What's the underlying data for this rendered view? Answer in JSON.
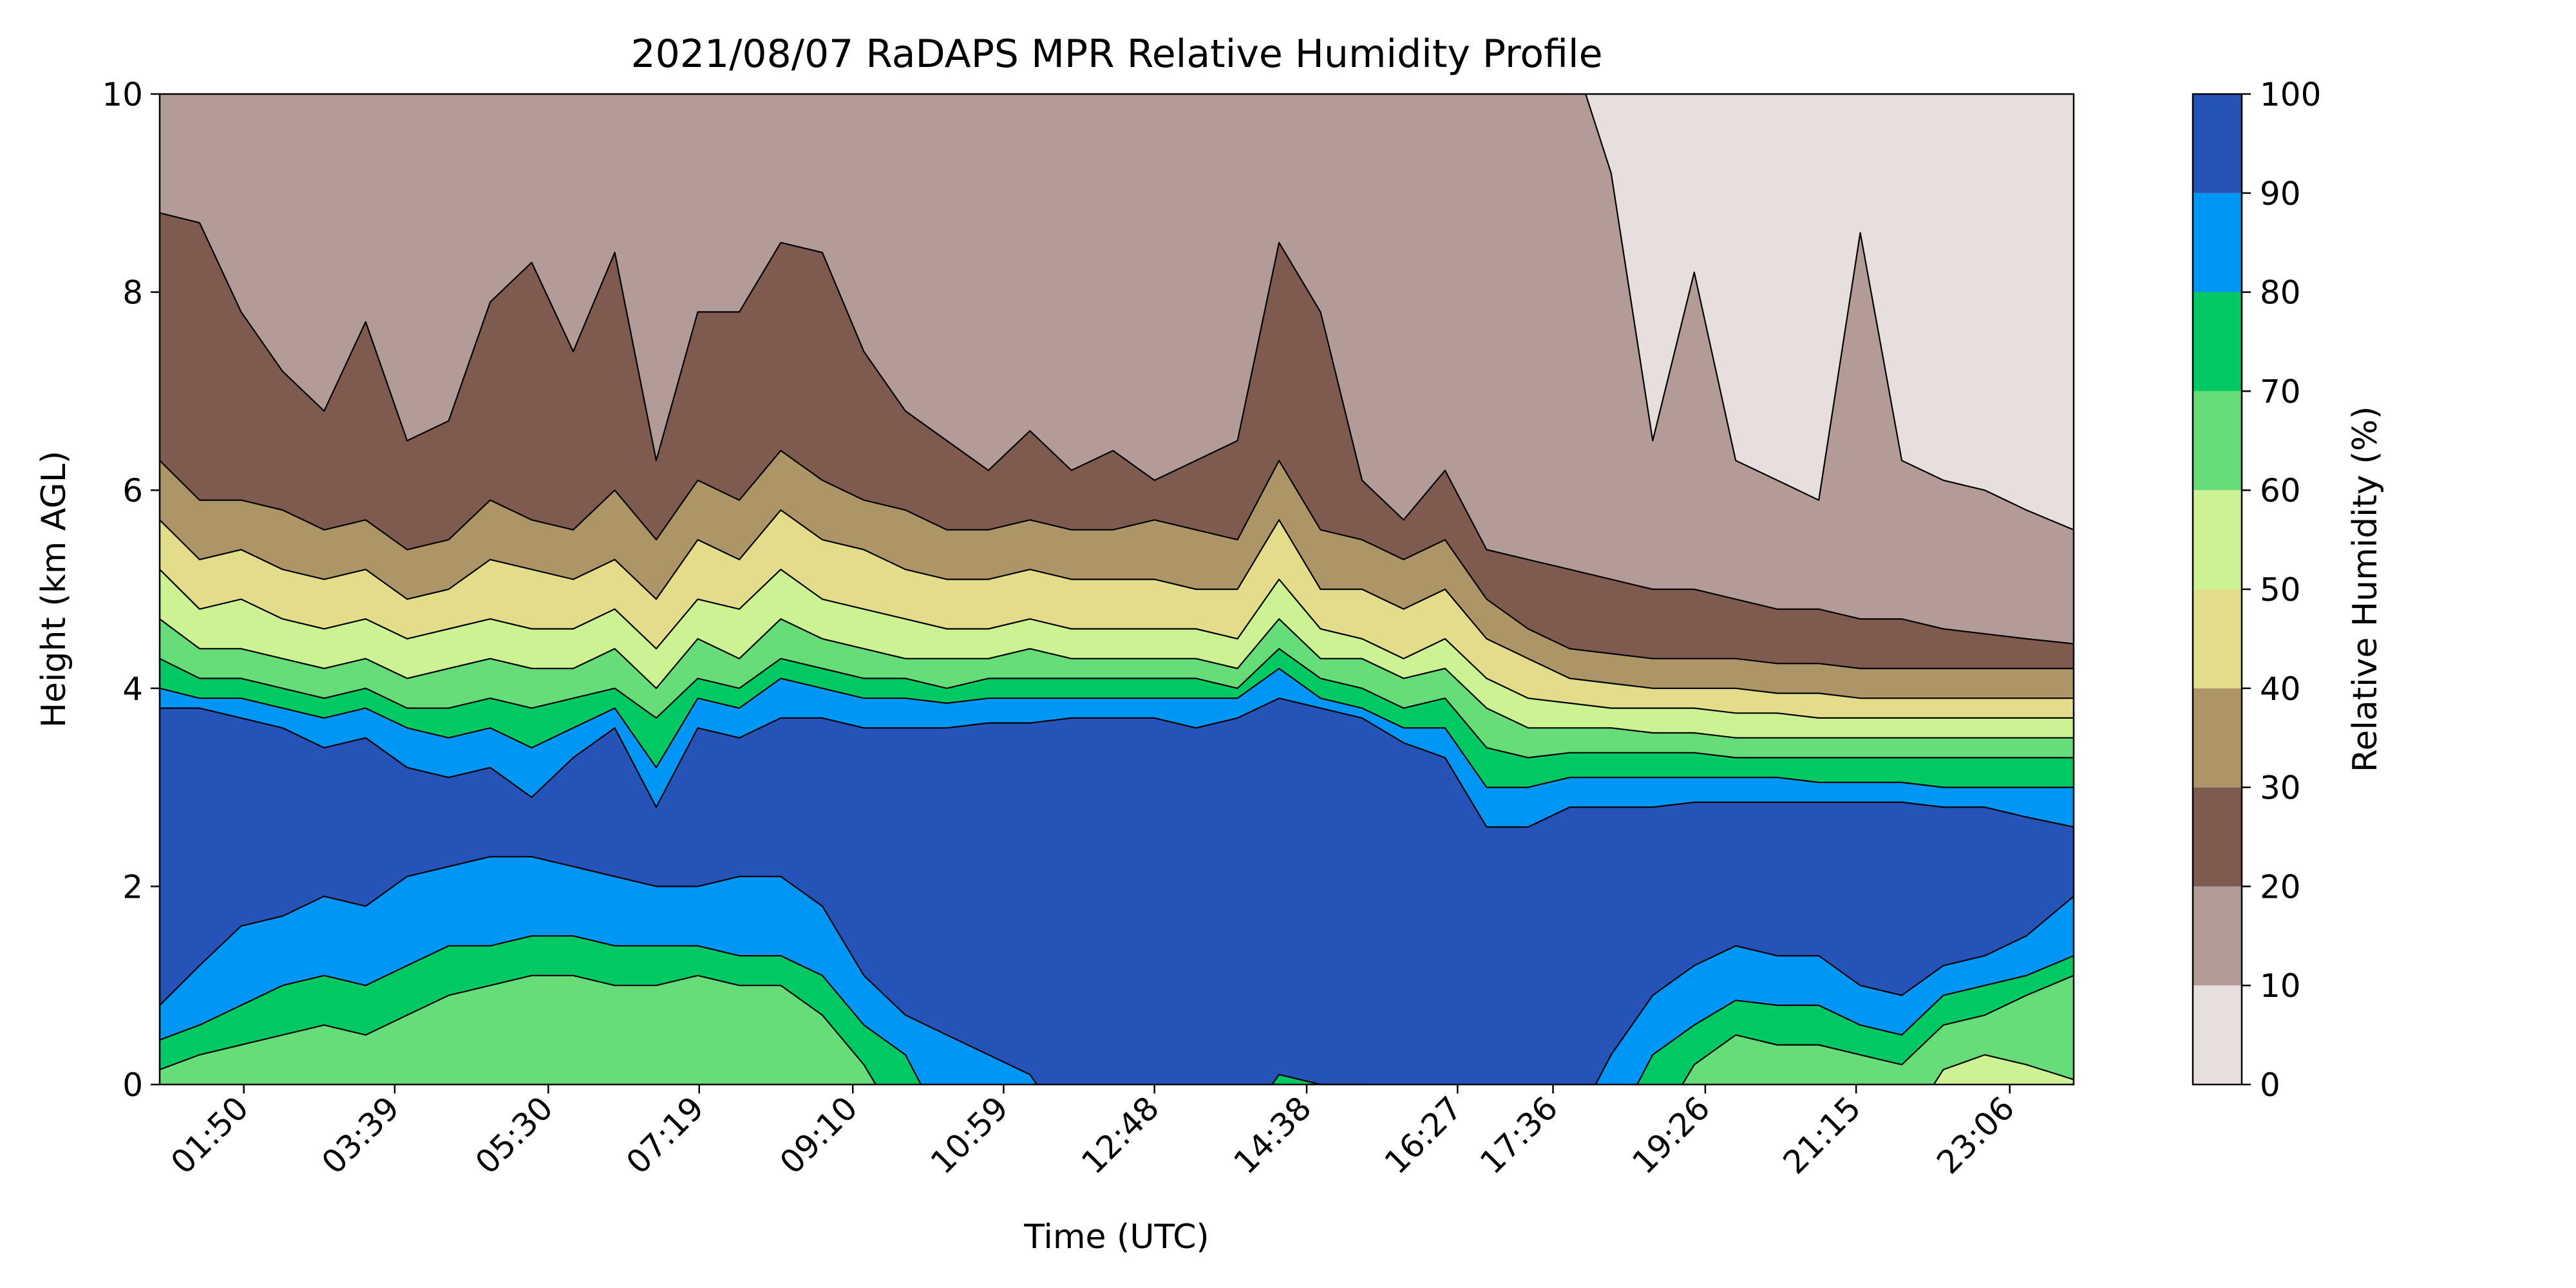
{
  "chart_data": {
    "type": "contour",
    "title": "2021/08/07 RaDAPS MPR Relative Humidity Profile",
    "xlabel": "Time (UTC)",
    "ylabel": "Height (km AGL)",
    "colorbar_label": "Relative Humidity (%)",
    "x_ticks": [
      "01:50",
      "03:39",
      "05:30",
      "07:19",
      "09:10",
      "10:59",
      "12:48",
      "14:38",
      "16:27",
      "17:36",
      "19:26",
      "21:15",
      "23:06"
    ],
    "x_tick_hours": [
      1.833,
      3.65,
      5.5,
      7.317,
      9.167,
      10.983,
      12.8,
      14.633,
      16.45,
      17.6,
      19.433,
      21.25,
      23.1
    ],
    "xlim_hours": [
      0.82,
      23.87
    ],
    "ylim": [
      0,
      10
    ],
    "y_ticks": [
      0,
      2,
      4,
      6,
      8,
      10
    ],
    "levels": [
      0,
      10,
      20,
      30,
      40,
      50,
      60,
      70,
      80,
      90,
      100
    ],
    "level_colors": [
      "#e6dfdd",
      "#b39c97",
      "#7e5a4f",
      "#ad9568",
      "#e3dc8a",
      "#ccf293",
      "#67dd7a",
      "#00c963",
      "#0096f6",
      "#2653b8"
    ],
    "grid": false,
    "boundaries_km": {
      "hours": [
        0.82,
        1.3,
        1.8,
        2.3,
        2.8,
        3.3,
        3.8,
        4.3,
        4.8,
        5.3,
        5.8,
        6.3,
        6.8,
        7.3,
        7.8,
        8.3,
        8.8,
        9.3,
        9.8,
        10.3,
        10.8,
        11.3,
        11.8,
        12.3,
        12.8,
        13.3,
        13.8,
        14.3,
        14.8,
        15.3,
        15.8,
        16.3,
        16.8,
        17.3,
        17.8,
        18.3,
        18.8,
        19.3,
        19.8,
        20.3,
        20.8,
        21.3,
        21.8,
        22.3,
        22.8,
        23.3,
        23.87
      ],
      "rh20": [
        8.8,
        8.7,
        7.8,
        7.2,
        6.8,
        7.7,
        6.5,
        6.7,
        7.9,
        8.3,
        7.4,
        8.4,
        6.3,
        7.8,
        7.8,
        8.5,
        8.4,
        7.4,
        6.8,
        6.5,
        6.2,
        6.6,
        6.2,
        6.4,
        6.1,
        6.3,
        6.5,
        8.5,
        7.8,
        6.1,
        5.7,
        6.2,
        5.4,
        5.3,
        5.2,
        5.1,
        5.0,
        5.0,
        4.9,
        4.8,
        4.8,
        4.7,
        4.7,
        4.6,
        4.55,
        4.5,
        4.45
      ],
      "rh10": [
        10.5,
        10.5,
        10.5,
        10.5,
        10.5,
        10.5,
        10.5,
        10.5,
        10.5,
        10.5,
        10.5,
        10.5,
        10.5,
        10.5,
        10.5,
        10.5,
        10.5,
        10.5,
        10.5,
        10.5,
        10.5,
        10.5,
        10.5,
        10.5,
        10.5,
        10.5,
        10.5,
        10.5,
        10.5,
        10.5,
        10.5,
        10.5,
        10.5,
        10.5,
        10.5,
        9.2,
        6.5,
        8.2,
        6.3,
        6.1,
        5.9,
        8.6,
        6.3,
        6.1,
        6.0,
        5.8,
        5.6
      ],
      "rh30": [
        6.3,
        5.9,
        5.9,
        5.8,
        5.6,
        5.7,
        5.4,
        5.5,
        5.9,
        5.7,
        5.6,
        6.0,
        5.5,
        6.1,
        5.9,
        6.4,
        6.1,
        5.9,
        5.8,
        5.6,
        5.6,
        5.7,
        5.6,
        5.6,
        5.7,
        5.6,
        5.5,
        6.3,
        5.6,
        5.5,
        5.3,
        5.5,
        4.9,
        4.6,
        4.4,
        4.35,
        4.3,
        4.3,
        4.3,
        4.25,
        4.25,
        4.2,
        4.2,
        4.2,
        4.2,
        4.2,
        4.2
      ],
      "rh40": [
        5.7,
        5.3,
        5.4,
        5.2,
        5.1,
        5.2,
        4.9,
        5.0,
        5.3,
        5.2,
        5.1,
        5.3,
        4.9,
        5.5,
        5.3,
        5.8,
        5.5,
        5.4,
        5.2,
        5.1,
        5.1,
        5.2,
        5.1,
        5.1,
        5.1,
        5.0,
        5.0,
        5.7,
        5.0,
        5.0,
        4.8,
        5.0,
        4.5,
        4.3,
        4.1,
        4.05,
        4.0,
        4.0,
        4.0,
        3.95,
        3.95,
        3.9,
        3.9,
        3.9,
        3.9,
        3.9,
        3.9
      ],
      "rh50": [
        5.2,
        4.8,
        4.9,
        4.7,
        4.6,
        4.7,
        4.5,
        4.6,
        4.7,
        4.6,
        4.6,
        4.8,
        4.4,
        4.9,
        4.8,
        5.2,
        4.9,
        4.8,
        4.7,
        4.6,
        4.6,
        4.7,
        4.6,
        4.6,
        4.6,
        4.6,
        4.5,
        5.1,
        4.6,
        4.5,
        4.3,
        4.5,
        4.1,
        3.9,
        3.85,
        3.8,
        3.8,
        3.8,
        3.75,
        3.75,
        3.7,
        3.7,
        3.7,
        3.7,
        3.7,
        3.7,
        3.7
      ],
      "rh60": [
        4.7,
        4.4,
        4.4,
        4.3,
        4.2,
        4.3,
        4.1,
        4.2,
        4.3,
        4.2,
        4.2,
        4.4,
        4.0,
        4.5,
        4.3,
        4.7,
        4.5,
        4.4,
        4.3,
        4.3,
        4.3,
        4.4,
        4.3,
        4.3,
        4.3,
        4.3,
        4.2,
        4.7,
        4.3,
        4.3,
        4.1,
        4.2,
        3.8,
        3.6,
        3.6,
        3.6,
        3.55,
        3.55,
        3.5,
        3.5,
        3.5,
        3.5,
        3.5,
        3.5,
        3.5,
        3.5,
        3.5
      ],
      "rh70": [
        4.3,
        4.1,
        4.1,
        4.0,
        3.9,
        4.0,
        3.8,
        3.8,
        3.9,
        3.8,
        3.9,
        4.0,
        3.7,
        4.1,
        4.0,
        4.3,
        4.2,
        4.1,
        4.1,
        4.0,
        4.1,
        4.1,
        4.1,
        4.1,
        4.1,
        4.1,
        4.0,
        4.4,
        4.1,
        4.0,
        3.8,
        3.9,
        3.4,
        3.3,
        3.35,
        3.35,
        3.35,
        3.35,
        3.3,
        3.3,
        3.3,
        3.3,
        3.3,
        3.3,
        3.3,
        3.3,
        3.3
      ],
      "rh80": [
        4.0,
        3.9,
        3.9,
        3.8,
        3.7,
        3.8,
        3.6,
        3.5,
        3.6,
        3.4,
        3.6,
        3.8,
        3.2,
        3.9,
        3.8,
        4.1,
        4.0,
        3.9,
        3.9,
        3.85,
        3.9,
        3.9,
        3.9,
        3.9,
        3.9,
        3.9,
        3.9,
        4.2,
        3.9,
        3.8,
        3.6,
        3.6,
        3.0,
        3.0,
        3.1,
        3.1,
        3.1,
        3.1,
        3.1,
        3.1,
        3.05,
        3.05,
        3.05,
        3.0,
        3.0,
        3.0,
        3.0
      ],
      "rh90": [
        3.8,
        3.8,
        3.7,
        3.6,
        3.4,
        3.5,
        3.2,
        3.1,
        3.2,
        2.9,
        3.3,
        3.6,
        2.8,
        3.6,
        3.5,
        3.7,
        3.7,
        3.6,
        3.6,
        3.6,
        3.65,
        3.65,
        3.7,
        3.7,
        3.7,
        3.6,
        3.7,
        3.9,
        3.8,
        3.7,
        3.45,
        3.3,
        2.6,
        2.6,
        2.8,
        2.8,
        2.8,
        2.85,
        2.85,
        2.85,
        2.85,
        2.85,
        2.85,
        2.8,
        2.8,
        2.7,
        2.6
      ],
      "rh90_bottom": [
        0.8,
        1.2,
        1.6,
        1.7,
        1.9,
        1.8,
        2.1,
        2.2,
        2.3,
        2.3,
        2.2,
        2.1,
        2.0,
        2.0,
        2.1,
        2.1,
        1.8,
        1.1,
        0.7,
        0.5,
        0.3,
        0.1,
        -0.5,
        -0.5,
        -0.5,
        -0.5,
        -0.5,
        -0.5,
        -0.5,
        -0.5,
        -0.5,
        -0.5,
        -0.5,
        -0.5,
        -0.5,
        0.3,
        0.9,
        1.2,
        1.4,
        1.3,
        1.3,
        1.0,
        0.9,
        1.2,
        1.3,
        1.5,
        1.9
      ],
      "rh80_bottom": [
        0.45,
        0.6,
        0.8,
        1.0,
        1.1,
        1.0,
        1.2,
        1.4,
        1.4,
        1.5,
        1.5,
        1.4,
        1.4,
        1.4,
        1.3,
        1.3,
        1.1,
        0.6,
        0.3,
        -0.5,
        -0.5,
        -0.5,
        -0.5,
        -0.5,
        -0.5,
        -0.5,
        -0.5,
        0.1,
        0.0,
        0.0,
        -0.5,
        -0.5,
        -0.5,
        -0.5,
        -0.5,
        -0.5,
        0.3,
        0.6,
        0.85,
        0.8,
        0.8,
        0.6,
        0.5,
        0.9,
        1.0,
        1.1,
        1.3
      ],
      "rh70_bottom": [
        0.15,
        0.3,
        0.4,
        0.5,
        0.6,
        0.5,
        0.7,
        0.9,
        1.0,
        1.1,
        1.1,
        1.0,
        1.0,
        1.1,
        1.0,
        1.0,
        0.7,
        0.2,
        -0.5,
        -0.5,
        -0.5,
        -0.5,
        -0.5,
        -0.5,
        -0.5,
        -0.5,
        -0.5,
        -0.5,
        -0.5,
        -0.5,
        -0.5,
        -0.5,
        -0.5,
        -0.5,
        -0.5,
        -0.5,
        -0.5,
        0.2,
        0.5,
        0.4,
        0.4,
        0.3,
        0.2,
        0.6,
        0.7,
        0.9,
        1.1
      ],
      "rh60_bottom": [
        -0.5,
        -0.5,
        -0.5,
        -0.5,
        -0.5,
        -0.5,
        -0.5,
        -0.5,
        -0.5,
        -0.5,
        -0.5,
        -0.5,
        -0.5,
        -0.5,
        -0.5,
        -0.5,
        -0.5,
        -0.5,
        -0.5,
        -0.5,
        -0.5,
        -0.5,
        -0.5,
        -0.5,
        -0.5,
        -0.5,
        -0.5,
        -0.5,
        -0.5,
        -0.5,
        -0.5,
        -0.5,
        -0.5,
        -0.5,
        -0.5,
        -0.5,
        -0.5,
        -0.5,
        -0.5,
        -0.5,
        -0.5,
        -0.5,
        -0.5,
        0.15,
        0.3,
        0.2,
        0.05
      ]
    }
  }
}
